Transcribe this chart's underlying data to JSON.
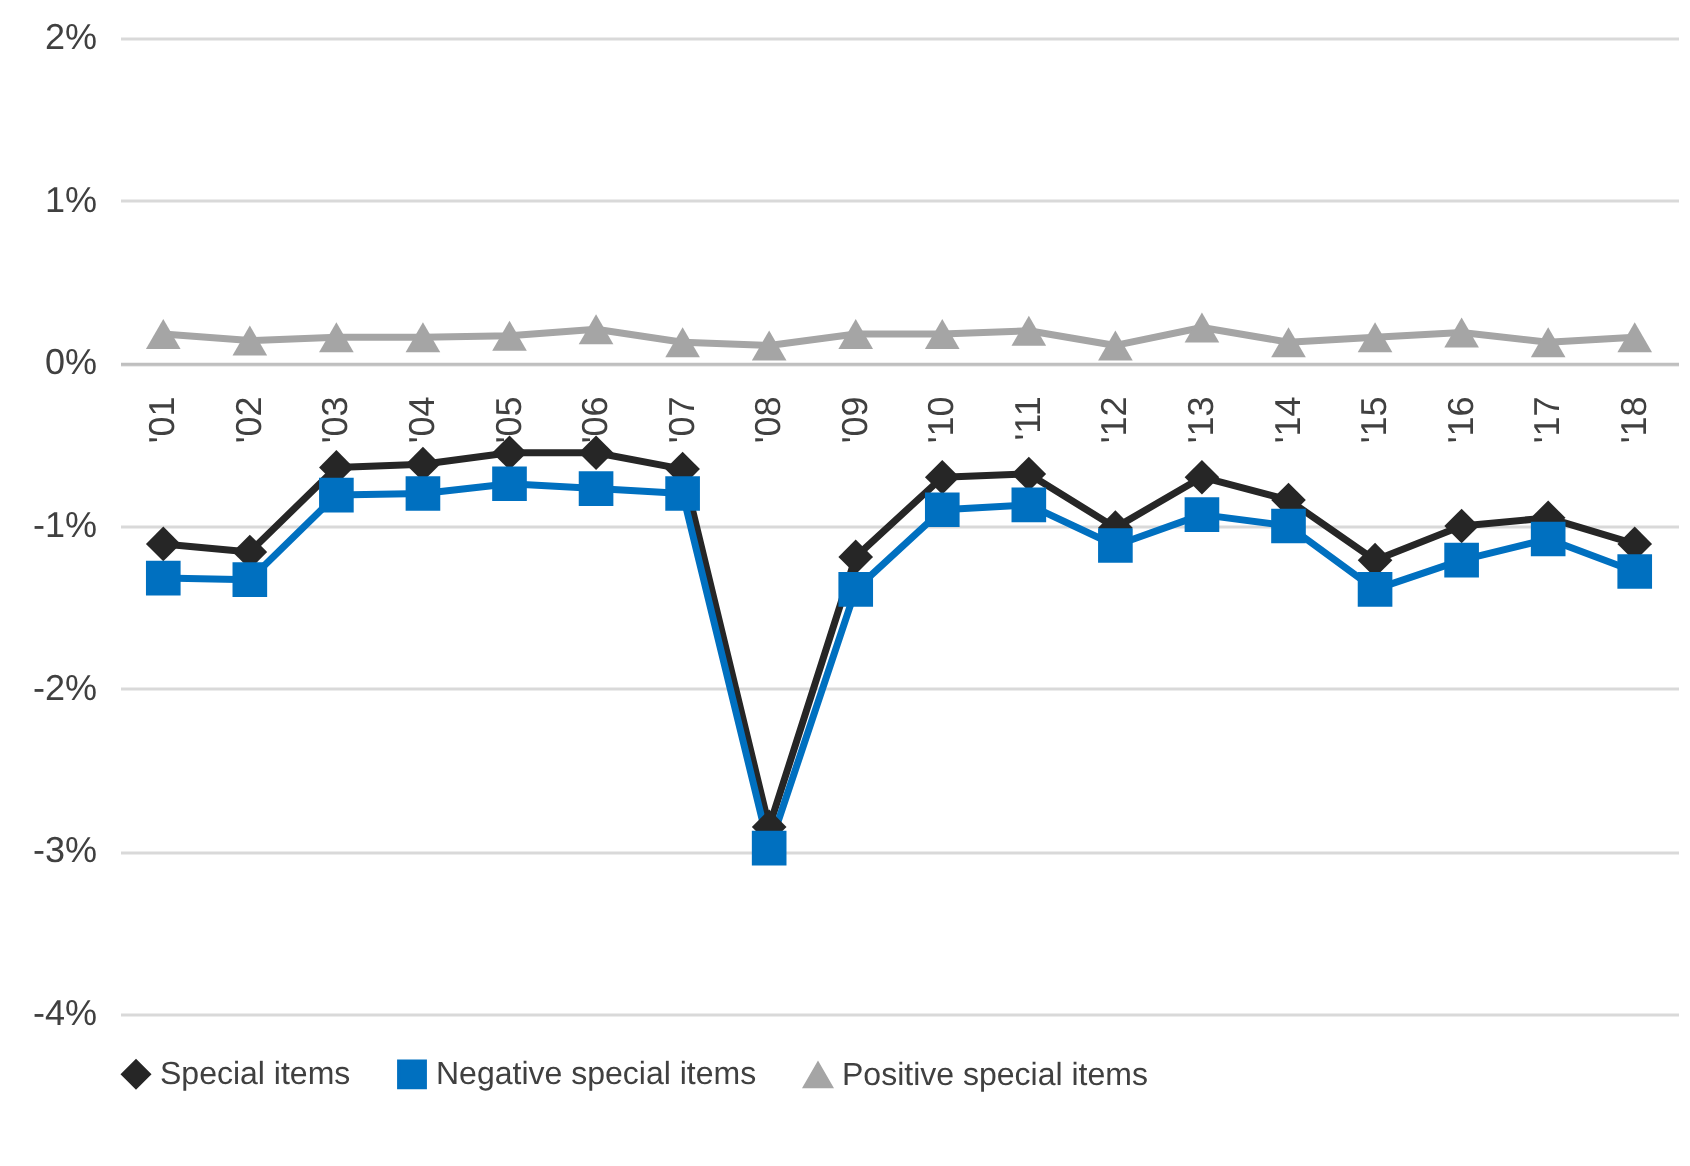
{
  "chart_data": {
    "type": "line",
    "categories": [
      "'01",
      "'02",
      "'03",
      "'04",
      "'05",
      "'06",
      "'07",
      "'08",
      "'09",
      "'10",
      "'11",
      "'12",
      "'13",
      "'14",
      "'15",
      "'16",
      "'17",
      "'18"
    ],
    "series": [
      {
        "name": "Special items",
        "color": "#262626",
        "marker": "diamond",
        "values": [
          -1.11,
          -1.16,
          -0.64,
          -0.62,
          -0.55,
          -0.55,
          -0.65,
          -2.85,
          -1.19,
          -0.7,
          -0.68,
          -1.01,
          -0.7,
          -0.84,
          -1.21,
          -1.0,
          -0.95,
          -1.11
        ]
      },
      {
        "name": "Negative special items",
        "color": "#0070c0",
        "marker": "square",
        "values": [
          -1.32,
          -1.33,
          -0.81,
          -0.8,
          -0.74,
          -0.77,
          -0.8,
          -2.98,
          -1.39,
          -0.9,
          -0.87,
          -1.12,
          -0.93,
          -1.0,
          -1.39,
          -1.21,
          -1.08,
          -1.28
        ]
      },
      {
        "name": "Positive special items",
        "color": "#a5a5a5",
        "marker": "triangle",
        "values": [
          0.18,
          0.14,
          0.16,
          0.16,
          0.17,
          0.21,
          0.13,
          0.11,
          0.18,
          0.18,
          0.2,
          0.11,
          0.22,
          0.13,
          0.16,
          0.19,
          0.13,
          0.16
        ]
      }
    ],
    "ylim": [
      -4,
      2
    ],
    "yticks": [
      {
        "value": -4,
        "label": "-4%"
      },
      {
        "value": -3,
        "label": "-3%"
      },
      {
        "value": -2,
        "label": "-2%"
      },
      {
        "value": -1,
        "label": "-1%"
      },
      {
        "value": 0,
        "label": "0%"
      },
      {
        "value": 1,
        "label": "1%"
      },
      {
        "value": 2,
        "label": "2%"
      }
    ],
    "grid": "y",
    "legend": "bottom",
    "line_style": "solid"
  }
}
